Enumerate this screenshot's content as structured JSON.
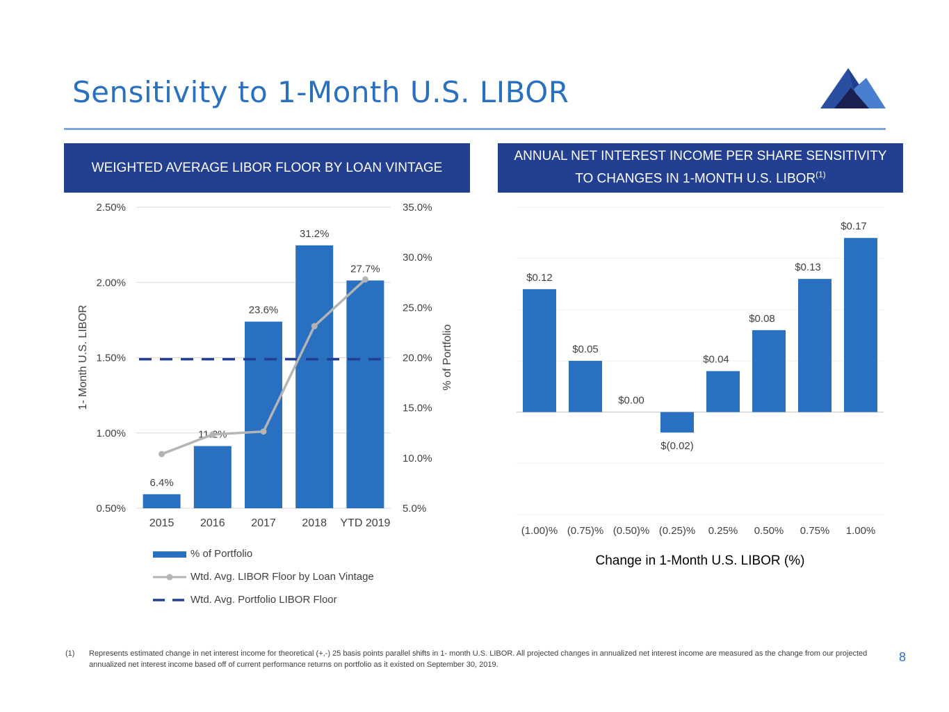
{
  "slide": {
    "title": "Sensitivity to 1-Month U.S. LIBOR",
    "page_number": "8",
    "footnote_mark": "(1)",
    "footnote_text": "Represents estimated change in net interest income for theoretical (+,-) 25 basis points parallel shifts in 1- month U.S. LIBOR. All projected changes in annualized net interest income are measured as the change from our projected annualized net interest income based off of current performance returns on portfolio as it existed on September 30, 2019."
  },
  "colors": {
    "title": "#2970c0",
    "header_bg": "#233f91",
    "bar": "#2970c0",
    "line": "#b4b4b4",
    "dash": "#233f91",
    "grid": "#d9d9d9"
  },
  "chart_data": [
    {
      "type": "bar",
      "header": "WEIGHTED AVERAGE LIBOR FLOOR BY LOAN VINTAGE",
      "categories": [
        "2015",
        "2016",
        "2017",
        "2018",
        "YTD 2019"
      ],
      "series": [
        {
          "name": "% of Portfolio",
          "axis": "right",
          "values": [
            6.4,
            11.2,
            23.6,
            31.2,
            27.7
          ],
          "labels": [
            "6.4%",
            "11.2%",
            "23.6%",
            "31.2%",
            "27.7%"
          ]
        },
        {
          "name": "Wtd. Avg. LIBOR Floor by Loan Vintage",
          "axis": "left",
          "type": "line",
          "values": [
            0.86,
            0.99,
            1.01,
            1.71,
            2.02
          ]
        },
        {
          "name": "Wtd. Avg. Portfolio LIBOR Floor",
          "axis": "left",
          "type": "dashed-line",
          "value": 1.49
        }
      ],
      "ylabel": "1- Month U.S. LIBOR",
      "y2label": "% of Portfolio",
      "ylim": [
        0.5,
        2.5
      ],
      "y2lim": [
        5.0,
        35.0
      ],
      "yticks": [
        "2.50%",
        "2.00%",
        "1.50%",
        "1.00%",
        "0.50%"
      ],
      "y2ticks": [
        "35.0%",
        "30.0%",
        "25.0%",
        "20.0%",
        "15.0%",
        "10.0%",
        "5.0%"
      ],
      "legend": [
        "% of Portfolio",
        "Wtd. Avg. LIBOR Floor by Loan Vintage",
        "Wtd. Avg. Portfolio LIBOR Floor"
      ]
    },
    {
      "type": "bar",
      "header_line1": "ANNUAL NET INTEREST INCOME PER SHARE SENSITIVITY",
      "header_line2": "TO CHANGES IN 1-MONTH U.S. LIBOR",
      "header_sup": "(1)",
      "categories": [
        "(1.00)%",
        "(0.75)%",
        "(0.50)%",
        "(0.25)%",
        "0.25%",
        "0.50%",
        "0.75%",
        "1.00%"
      ],
      "values": [
        0.12,
        0.05,
        0.0,
        -0.02,
        0.04,
        0.08,
        0.13,
        0.17
      ],
      "labels": [
        "$0.12",
        "$0.05",
        "$0.00",
        "$(0.02)",
        "$0.04",
        "$0.08",
        "$0.13",
        "$0.17"
      ],
      "xlabel": "Change in 1-Month U.S. LIBOR (%)",
      "ylim": [
        -0.1,
        0.2
      ],
      "grid": true
    }
  ]
}
